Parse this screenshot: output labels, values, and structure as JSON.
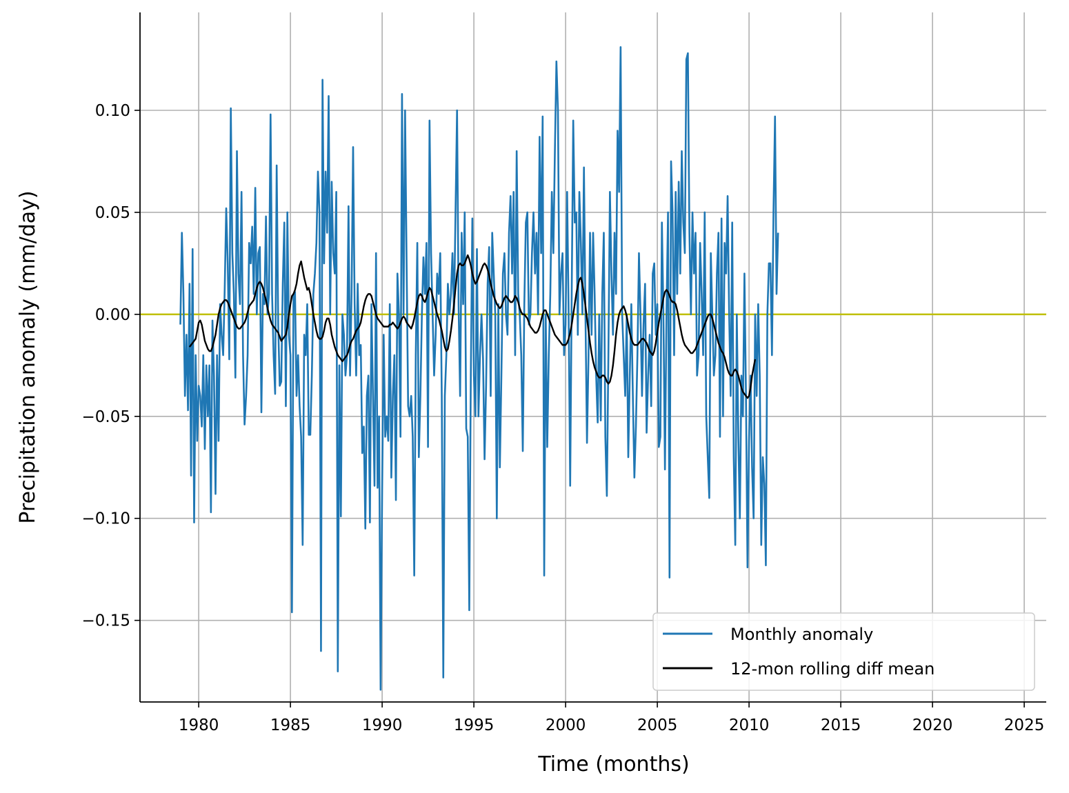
{
  "chart_data": {
    "type": "line",
    "title": "",
    "xlabel": "Time (months)",
    "ylabel": "Precipitation anomaly (mm/day)",
    "xlim": [
      1976.8,
      2026.2
    ],
    "ylim": [
      -0.19,
      0.148
    ],
    "xticks": [
      1980,
      1985,
      1990,
      1995,
      2000,
      2005,
      2010,
      2015,
      2020,
      2025
    ],
    "xtick_labels": [
      "1980",
      "1985",
      "1990",
      "1995",
      "2000",
      "2005",
      "2010",
      "2015",
      "2020",
      "2025"
    ],
    "yticks": [
      0.1,
      0.05,
      0.0,
      -0.05,
      -0.1,
      -0.15
    ],
    "ytick_labels": [
      "0.10",
      "0.05",
      "0.00",
      "−0.05",
      "−0.10",
      "−0.15"
    ],
    "grid": true,
    "legend_position": "lower-right",
    "reference_line": {
      "y": 0.0,
      "color": "#bfbf00"
    },
    "series": [
      {
        "name": "Monthly anomaly",
        "color": "#1f77b4",
        "start": 1979.0,
        "step": 0.08333,
        "values": [
          -0.005,
          0.04,
          0.01,
          -0.04,
          -0.01,
          -0.047,
          0.015,
          -0.079,
          0.032,
          -0.102,
          -0.02,
          -0.062,
          -0.035,
          -0.04,
          -0.055,
          -0.02,
          -0.066,
          -0.025,
          -0.05,
          -0.025,
          -0.097,
          -0.003,
          -0.03,
          -0.088,
          -0.02,
          -0.062,
          0.005,
          -0.01,
          -0.02,
          0.012,
          0.052,
          0.025,
          -0.022,
          0.101,
          0.03,
          0.01,
          -0.031,
          0.08,
          0.02,
          0.005,
          0.06,
          -0.02,
          -0.054,
          -0.04,
          -0.02,
          0.035,
          0.025,
          0.043,
          0.01,
          0.062,
          0.0,
          0.03,
          0.033,
          -0.048,
          0.01,
          0.005,
          0.048,
          0.0,
          0.01,
          0.098,
          0.01,
          -0.02,
          -0.039,
          0.073,
          -0.005,
          -0.035,
          -0.033,
          0.015,
          0.045,
          -0.045,
          0.05,
          -0.01,
          -0.02,
          -0.146,
          0.01,
          0.011,
          -0.04,
          -0.02,
          -0.045,
          -0.06,
          -0.113,
          -0.01,
          -0.02,
          0.005,
          -0.059,
          -0.059,
          -0.03,
          0.01,
          0.02,
          0.035,
          0.07,
          0.05,
          -0.165,
          0.115,
          0.025,
          0.07,
          0.04,
          0.107,
          0.0,
          0.065,
          0.03,
          0.02,
          0.06,
          -0.175,
          -0.025,
          -0.099,
          0.0,
          -0.01,
          -0.03,
          -0.02,
          0.053,
          -0.03,
          0.01,
          0.082,
          0.005,
          -0.03,
          0.015,
          -0.02,
          -0.015,
          -0.068,
          -0.055,
          -0.105,
          -0.04,
          -0.03,
          -0.102,
          0.005,
          -0.04,
          -0.084,
          0.03,
          -0.085,
          -0.05,
          -0.184,
          -0.086,
          -0.01,
          -0.06,
          -0.05,
          -0.062,
          0.005,
          -0.08,
          -0.04,
          -0.02,
          -0.091,
          0.02,
          0.0,
          -0.06,
          0.108,
          0.0,
          0.1,
          0.025,
          -0.045,
          -0.05,
          -0.04,
          -0.06,
          -0.128,
          -0.02,
          0.035,
          -0.07,
          -0.04,
          0.0,
          0.028,
          0.01,
          0.035,
          -0.065,
          0.095,
          0.03,
          0.0,
          -0.03,
          -0.01,
          0.02,
          0.01,
          0.03,
          -0.04,
          -0.178,
          -0.04,
          -0.02,
          0.015,
          0.0,
          0.01,
          0.03,
          0.0,
          0.05,
          0.1,
          0.005,
          -0.04,
          0.04,
          0.005,
          0.05,
          -0.056,
          -0.06,
          -0.145,
          -0.03,
          0.047,
          -0.03,
          -0.05,
          0.032,
          -0.05,
          -0.02,
          0.0,
          -0.022,
          -0.071,
          -0.035,
          0.015,
          0.033,
          -0.04,
          0.04,
          0.02,
          0.0,
          -0.1,
          0.005,
          -0.075,
          -0.03,
          0.02,
          0.03,
          0.0,
          -0.01,
          0.04,
          0.058,
          0.02,
          0.06,
          -0.02,
          0.08,
          0.01,
          0.0,
          -0.02,
          -0.067,
          0.005,
          0.045,
          0.05,
          -0.005,
          0.0,
          0.03,
          0.05,
          0.02,
          0.04,
          0.0,
          0.087,
          0.03,
          0.097,
          -0.128,
          0.0,
          -0.065,
          -0.02,
          0.01,
          0.06,
          0.03,
          0.08,
          0.124,
          0.1,
          0.0,
          0.02,
          0.03,
          -0.02,
          -0.005,
          0.06,
          0.0,
          -0.084,
          0.01,
          0.095,
          0.045,
          0.05,
          -0.01,
          0.06,
          0.035,
          0.0,
          0.072,
          0.0,
          -0.063,
          -0.02,
          0.04,
          -0.01,
          0.04,
          0.01,
          -0.03,
          -0.053,
          0.0,
          -0.052,
          0.01,
          0.04,
          -0.06,
          -0.089,
          -0.02,
          0.06,
          0.02,
          -0.01,
          0.04,
          0.01,
          0.09,
          0.06,
          0.131,
          0.0,
          -0.02,
          -0.04,
          0.0,
          -0.07,
          -0.03,
          0.005,
          -0.04,
          -0.08,
          -0.055,
          -0.02,
          0.03,
          0.0,
          -0.04,
          -0.005,
          0.015,
          -0.058,
          -0.03,
          -0.01,
          -0.045,
          0.02,
          0.025,
          -0.01,
          0.005,
          -0.065,
          -0.06,
          0.045,
          0.0,
          -0.076,
          0.0,
          0.05,
          -0.129,
          0.075,
          0.05,
          -0.02,
          0.06,
          0.01,
          0.065,
          0.02,
          0.08,
          0.045,
          0.03,
          0.125,
          0.128,
          0.04,
          0.0,
          0.05,
          0.02,
          0.04,
          -0.03,
          -0.02,
          0.035,
          0.01,
          -0.02,
          0.05,
          -0.05,
          -0.07,
          -0.09,
          0.03,
          0.0,
          -0.03,
          -0.02,
          0.02,
          0.04,
          -0.06,
          0.047,
          -0.05,
          0.035,
          0.02,
          0.058,
          0.0,
          -0.04,
          0.045,
          -0.07,
          -0.113,
          0.0,
          -0.06,
          -0.1,
          -0.03,
          -0.05,
          0.02,
          -0.04,
          -0.124,
          -0.062,
          -0.03,
          -0.075,
          -0.1,
          0.0,
          -0.04,
          0.005,
          -0.03,
          -0.113,
          -0.07,
          -0.083,
          -0.123,
          0.0,
          0.025,
          0.025,
          -0.02,
          0.05,
          0.097,
          0.01,
          0.04
        ]
      },
      {
        "name": "12-mon rolling diff mean",
        "color": "#000000",
        "start": 1979.5,
        "step": 0.08333,
        "values": [
          -0.016,
          -0.015,
          -0.014,
          -0.013,
          -0.012,
          -0.008,
          -0.004,
          -0.003,
          -0.005,
          -0.009,
          -0.013,
          -0.015,
          -0.017,
          -0.018,
          -0.018,
          -0.016,
          -0.013,
          -0.01,
          -0.005,
          0.0,
          0.003,
          0.005,
          0.006,
          0.007,
          0.007,
          0.006,
          0.004,
          0.002,
          0.0,
          -0.002,
          -0.004,
          -0.006,
          -0.007,
          -0.007,
          -0.006,
          -0.005,
          -0.004,
          -0.002,
          0.001,
          0.004,
          0.005,
          0.006,
          0.007,
          0.01,
          0.013,
          0.015,
          0.016,
          0.015,
          0.013,
          0.01,
          0.007,
          0.003,
          0.0,
          -0.003,
          -0.005,
          -0.006,
          -0.007,
          -0.008,
          -0.009,
          -0.011,
          -0.013,
          -0.012,
          -0.011,
          -0.01,
          -0.006,
          0.0,
          0.005,
          0.009,
          0.01,
          0.012,
          0.015,
          0.02,
          0.024,
          0.026,
          0.022,
          0.018,
          0.015,
          0.012,
          0.013,
          0.01,
          0.005,
          0.0,
          -0.004,
          -0.008,
          -0.011,
          -0.012,
          -0.012,
          -0.011,
          -0.008,
          -0.004,
          -0.002,
          -0.002,
          -0.005,
          -0.01,
          -0.013,
          -0.016,
          -0.018,
          -0.02,
          -0.021,
          -0.022,
          -0.023,
          -0.022,
          -0.021,
          -0.02,
          -0.018,
          -0.015,
          -0.013,
          -0.012,
          -0.01,
          -0.008,
          -0.007,
          -0.006,
          -0.004,
          0.0,
          0.004,
          0.007,
          0.009,
          0.01,
          0.01,
          0.009,
          0.006,
          0.003,
          0.0,
          -0.002,
          -0.003,
          -0.004,
          -0.005,
          -0.006,
          -0.006,
          -0.006,
          -0.006,
          -0.005,
          -0.005,
          -0.004,
          -0.005,
          -0.006,
          -0.007,
          -0.006,
          -0.004,
          -0.002,
          -0.001,
          -0.002,
          -0.004,
          -0.005,
          -0.006,
          -0.007,
          -0.005,
          -0.002,
          0.002,
          0.006,
          0.009,
          0.01,
          0.009,
          0.007,
          0.006,
          0.008,
          0.011,
          0.013,
          0.012,
          0.009,
          0.006,
          0.003,
          0.0,
          -0.002,
          -0.005,
          -0.008,
          -0.012,
          -0.016,
          -0.018,
          -0.017,
          -0.013,
          -0.008,
          -0.002,
          0.005,
          0.013,
          0.02,
          0.024,
          0.025,
          0.024,
          0.024,
          0.025,
          0.027,
          0.029,
          0.027,
          0.024,
          0.02,
          0.017,
          0.015,
          0.016,
          0.018,
          0.02,
          0.022,
          0.024,
          0.025,
          0.024,
          0.022,
          0.019,
          0.015,
          0.012,
          0.009,
          0.007,
          0.005,
          0.004,
          0.003,
          0.004,
          0.006,
          0.008,
          0.009,
          0.008,
          0.007,
          0.006,
          0.006,
          0.007,
          0.009,
          0.008,
          0.006,
          0.003,
          0.001,
          0.0,
          0.0,
          -0.001,
          -0.002,
          -0.004,
          -0.006,
          -0.007,
          -0.008,
          -0.009,
          -0.009,
          -0.008,
          -0.006,
          -0.003,
          0.0,
          0.002,
          0.002,
          0.0,
          -0.002,
          -0.004,
          -0.006,
          -0.008,
          -0.01,
          -0.011,
          -0.012,
          -0.013,
          -0.014,
          -0.015,
          -0.015,
          -0.015,
          -0.014,
          -0.012,
          -0.009,
          -0.005,
          0.0,
          0.005,
          0.01,
          0.014,
          0.017,
          0.018,
          0.015,
          0.01,
          0.004,
          -0.002,
          -0.008,
          -0.014,
          -0.019,
          -0.023,
          -0.026,
          -0.028,
          -0.03,
          -0.031,
          -0.031,
          -0.03,
          -0.03,
          -0.031,
          -0.033,
          -0.034,
          -0.033,
          -0.03,
          -0.025,
          -0.018,
          -0.01,
          -0.004,
          0.0,
          0.002,
          0.003,
          0.004,
          0.002,
          -0.001,
          -0.005,
          -0.009,
          -0.012,
          -0.014,
          -0.015,
          -0.015,
          -0.015,
          -0.014,
          -0.013,
          -0.012,
          -0.012,
          -0.013,
          -0.014,
          -0.016,
          -0.018,
          -0.019,
          -0.02,
          -0.018,
          -0.014,
          -0.009,
          -0.004,
          0.0,
          0.004,
          0.008,
          0.011,
          0.012,
          0.011,
          0.009,
          0.007,
          0.006,
          0.006,
          0.005,
          0.002,
          -0.002,
          -0.006,
          -0.01,
          -0.013,
          -0.015,
          -0.016,
          -0.017,
          -0.018,
          -0.019,
          -0.019,
          -0.018,
          -0.017,
          -0.015,
          -0.013,
          -0.011,
          -0.009,
          -0.007,
          -0.005,
          -0.003,
          -0.001,
          0.0,
          0.0,
          -0.002,
          -0.005,
          -0.008,
          -0.011,
          -0.014,
          -0.016,
          -0.018,
          -0.019,
          -0.021,
          -0.024,
          -0.027,
          -0.029,
          -0.03,
          -0.03,
          -0.028,
          -0.027,
          -0.028,
          -0.03,
          -0.033,
          -0.036,
          -0.038,
          -0.039,
          -0.04,
          -0.041,
          -0.04,
          -0.036,
          -0.03,
          -0.026,
          -0.022
        ]
      }
    ]
  }
}
